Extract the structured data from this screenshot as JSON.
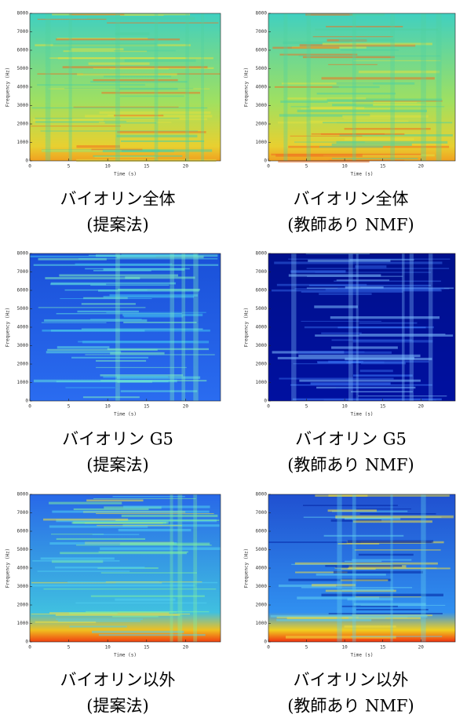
{
  "panels": [
    {
      "caption": [
        "バイオリン全体",
        "(提案法)"
      ],
      "x_label": "Time (s)",
      "y_label": "Frequency (Hz)",
      "xlim": [
        0,
        24.5
      ],
      "ylim": [
        0,
        8000
      ],
      "xticks": [
        0,
        5,
        10,
        15,
        20
      ],
      "yticks": [
        0,
        1000,
        2000,
        3000,
        4000,
        5000,
        6000,
        7000,
        8000
      ]
    },
    {
      "caption": [
        "バイオリン全体",
        "(教師あり NMF)"
      ],
      "x_label": "Time (s)",
      "y_label": "Frequency (Hz)",
      "xlim": [
        0,
        24.5
      ],
      "ylim": [
        0,
        8000
      ],
      "xticks": [
        0,
        5,
        10,
        15,
        20
      ],
      "yticks": [
        0,
        1000,
        2000,
        3000,
        4000,
        5000,
        6000,
        7000,
        8000
      ]
    },
    {
      "caption": [
        "バイオリン G5",
        "(提案法)"
      ],
      "x_label": "Time (s)",
      "y_label": "Frequency (Hz)",
      "xlim": [
        0,
        24.5
      ],
      "ylim": [
        0,
        8000
      ],
      "xticks": [
        0,
        5,
        10,
        15,
        20
      ],
      "yticks": [
        0,
        1000,
        2000,
        3000,
        4000,
        5000,
        6000,
        7000,
        8000
      ]
    },
    {
      "caption": [
        "バイオリン G5",
        "(教師あり NMF)"
      ],
      "x_label": "Time (s)",
      "y_label": "Frequency (Hz)",
      "xlim": [
        0,
        24.5
      ],
      "ylim": [
        0,
        8000
      ],
      "xticks": [
        0,
        5,
        10,
        15,
        20
      ],
      "yticks": [
        0,
        1000,
        2000,
        3000,
        4000,
        5000,
        6000,
        7000,
        8000
      ]
    },
    {
      "caption": [
        "バイオリン以外",
        "(提案法)"
      ],
      "x_label": "Time (s)",
      "y_label": "Frequency (Hz)",
      "xlim": [
        0,
        24.5
      ],
      "ylim": [
        0,
        8000
      ],
      "xticks": [
        0,
        5,
        10,
        15,
        20
      ],
      "yticks": [
        0,
        1000,
        2000,
        3000,
        4000,
        5000,
        6000,
        7000,
        8000
      ]
    },
    {
      "caption": [
        "バイオリン以外",
        "(教師あり NMF)"
      ],
      "x_label": "Time (s)",
      "y_label": "Frequency (Hz)",
      "xlim": [
        0,
        24.5
      ],
      "ylim": [
        0,
        8000
      ],
      "xticks": [
        0,
        5,
        10,
        15,
        20
      ],
      "yticks": [
        0,
        1000,
        2000,
        3000,
        4000,
        5000,
        6000,
        7000,
        8000
      ]
    }
  ]
}
